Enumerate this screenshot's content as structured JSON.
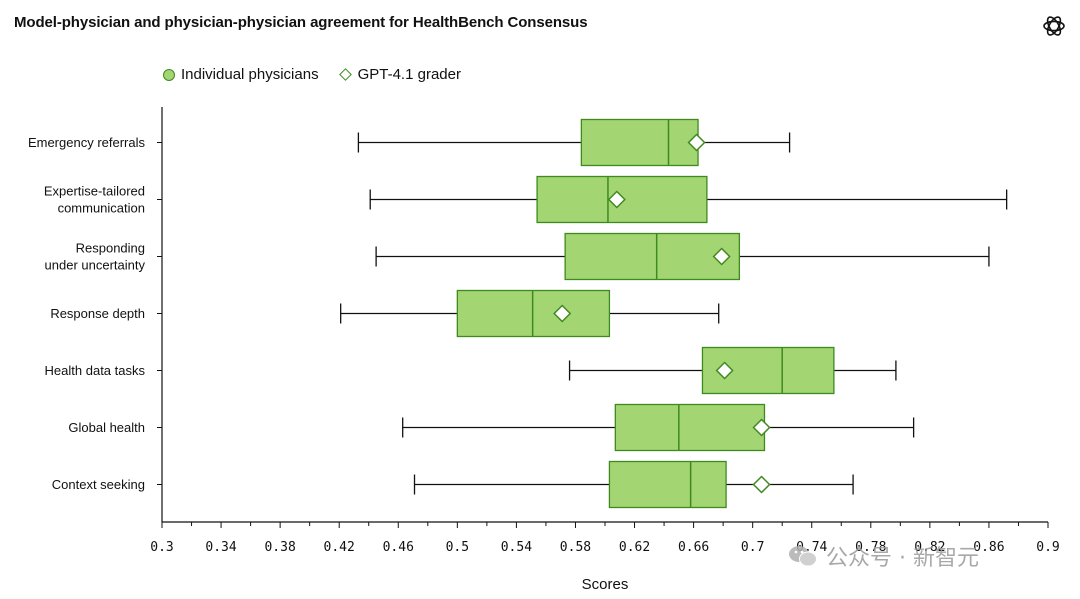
{
  "header": {
    "title": "Model-physician and physician-physician agreement for HealthBench Consensus",
    "logo_icon": "openai-logo-icon"
  },
  "legend": {
    "items": [
      {
        "label": "Individual physicians",
        "marker": "circle",
        "color": "#a3d672"
      },
      {
        "label": "GPT-4.1 grader",
        "marker": "diamond",
        "color": "#ffffff"
      }
    ]
  },
  "watermark": {
    "icon": "wechat-icon",
    "text": "公众号 · 新智元"
  },
  "colors": {
    "box_fill": "#a3d672",
    "box_stroke": "#3f8a1f",
    "whisker": "#111111",
    "diamond_fill": "#ffffff"
  },
  "chart_data": {
    "type": "boxplot",
    "orientation": "horizontal",
    "title": "Model-physician and physician-physician agreement for HealthBench Consensus",
    "xlabel": "Scores",
    "xlim": [
      0.3,
      0.9
    ],
    "xticks": [
      "0.3",
      "0.34",
      "0.38",
      "0.42",
      "0.46",
      "0.5",
      "0.54",
      "0.58",
      "0.62",
      "0.66",
      "0.7",
      "0.74",
      "0.78",
      "0.82",
      "0.86",
      "0.9"
    ],
    "legend_position": "top-left",
    "series": [
      {
        "name": "Individual physicians",
        "kind": "box"
      },
      {
        "name": "GPT-4.1 grader",
        "kind": "diamond"
      }
    ],
    "categories": [
      {
        "label": [
          "Emergency referrals"
        ],
        "min": 0.433,
        "q1": 0.584,
        "median": 0.643,
        "q3": 0.663,
        "max": 0.725,
        "grader": 0.662
      },
      {
        "label": [
          "Expertise-tailored",
          "communication"
        ],
        "min": 0.441,
        "q1": 0.554,
        "median": 0.602,
        "q3": 0.669,
        "max": 0.872,
        "grader": 0.608
      },
      {
        "label": [
          "Responding",
          "under uncertainty"
        ],
        "min": 0.445,
        "q1": 0.573,
        "median": 0.635,
        "q3": 0.691,
        "max": 0.86,
        "grader": 0.679
      },
      {
        "label": [
          "Response depth"
        ],
        "min": 0.421,
        "q1": 0.5,
        "median": 0.551,
        "q3": 0.603,
        "max": 0.677,
        "grader": 0.571
      },
      {
        "label": [
          "Health data tasks"
        ],
        "min": 0.576,
        "q1": 0.666,
        "median": 0.72,
        "q3": 0.755,
        "max": 0.797,
        "grader": 0.681
      },
      {
        "label": [
          "Global health"
        ],
        "min": 0.463,
        "q1": 0.607,
        "median": 0.65,
        "q3": 0.708,
        "max": 0.809,
        "grader": 0.706
      },
      {
        "label": [
          "Context seeking"
        ],
        "min": 0.471,
        "q1": 0.603,
        "median": 0.658,
        "q3": 0.682,
        "max": 0.768,
        "grader": 0.706
      }
    ]
  }
}
